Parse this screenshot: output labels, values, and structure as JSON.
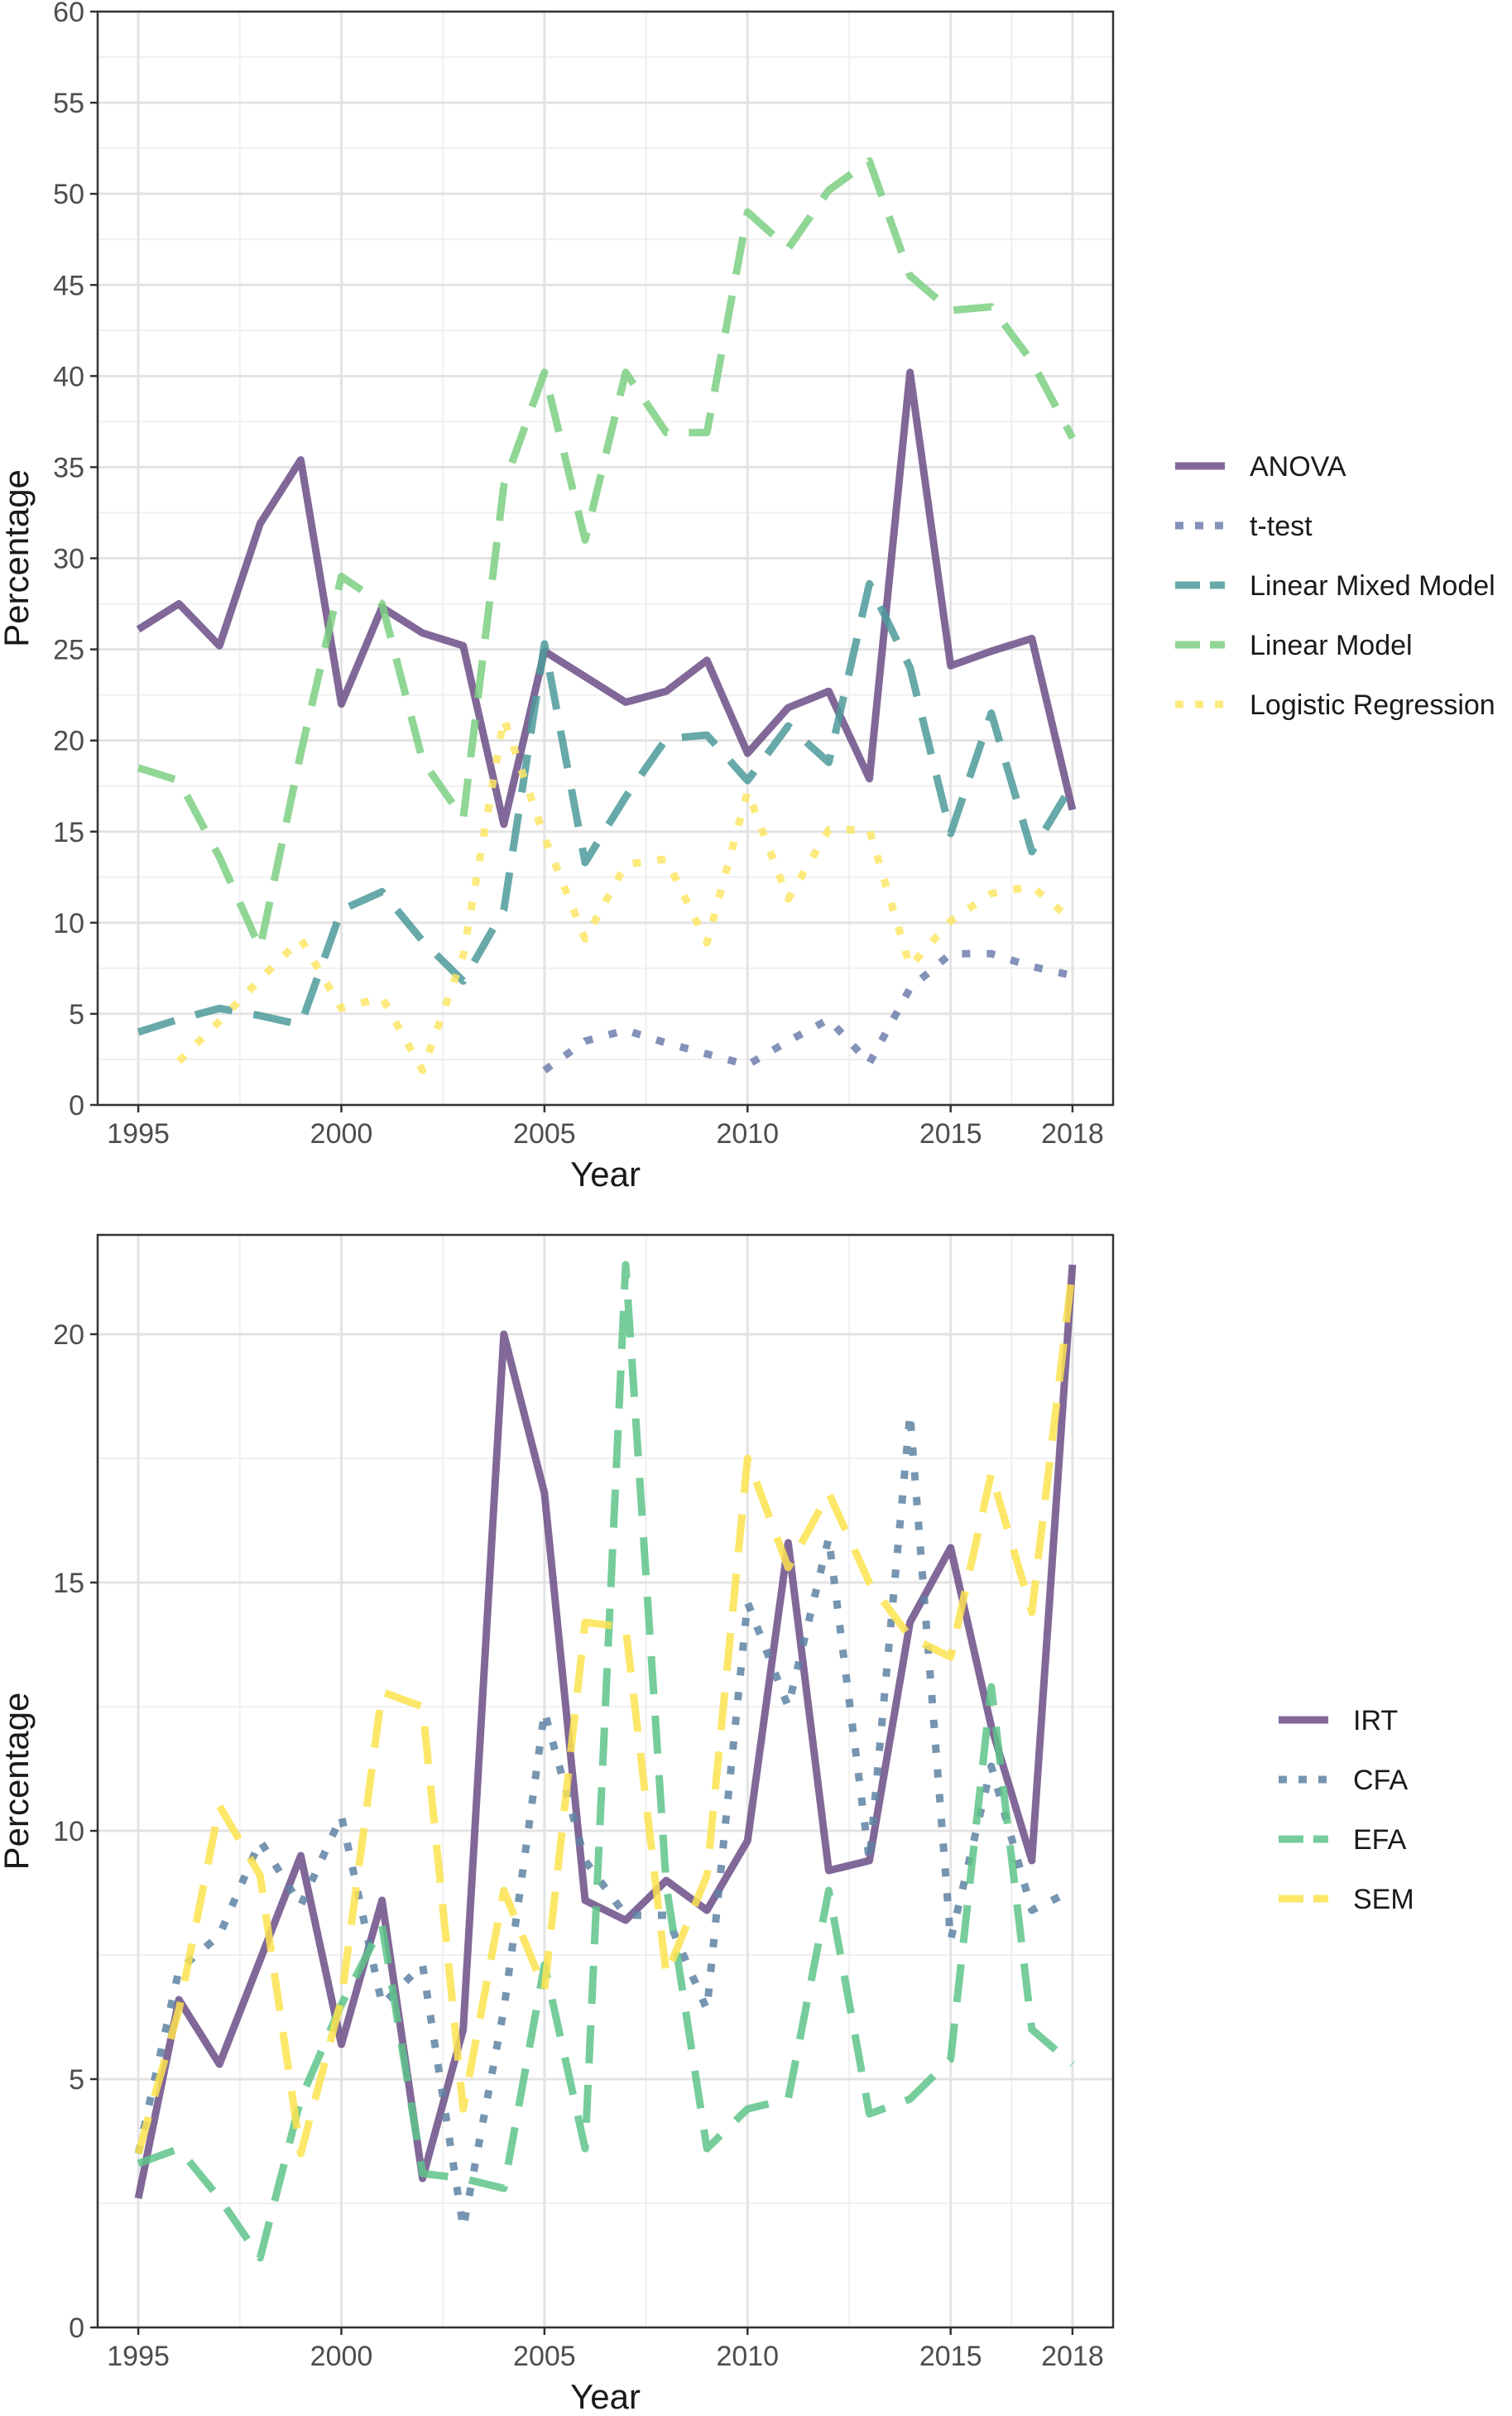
{
  "chart_data": [
    {
      "type": "line",
      "title": "",
      "xlabel": "Year",
      "ylabel": "Percentage",
      "xlim": [
        1994,
        2019
      ],
      "ylim": [
        0,
        60
      ],
      "x_ticks": [
        1995,
        2000,
        2005,
        2010,
        2015,
        2018
      ],
      "x_tick_labels": [
        "1995",
        "2000",
        "2005",
        "2010",
        "2015",
        "2018"
      ],
      "y_ticks": [
        0,
        5,
        10,
        15,
        20,
        25,
        30,
        35,
        40,
        45,
        50,
        55,
        60
      ],
      "y_tick_labels": [
        "0",
        "5",
        "10",
        "15",
        "20",
        "25",
        "30",
        "35",
        "40",
        "45",
        "50",
        "55",
        "60"
      ],
      "grid": true,
      "legend_position": "right",
      "series": [
        {
          "name": "ANOVA",
          "color": "#6b4e86",
          "style": "solid",
          "x": [
            1995,
            1996,
            1997,
            1998,
            1999,
            2000,
            2001,
            2002,
            2003,
            2004,
            2005,
            2006,
            2007,
            2008,
            2009,
            2010,
            2011,
            2012,
            2013,
            2014,
            2015,
            2016,
            2017,
            2018
          ],
          "y": [
            26.1,
            27.5,
            25.2,
            31.9,
            35.4,
            22.0,
            27.3,
            25.9,
            25.2,
            15.4,
            24.9,
            23.5,
            22.1,
            22.7,
            24.4,
            19.3,
            21.8,
            22.7,
            17.9,
            40.2,
            24.1,
            24.9,
            25.6,
            16.2
          ]
        },
        {
          "name": "t-test",
          "color": "#6f7fae",
          "style": "dotted",
          "x": [
            2005,
            2006,
            2007,
            2008,
            2009,
            2010,
            2011,
            2012,
            2013,
            2014,
            2015,
            2016,
            2017,
            2018
          ],
          "y": [
            1.9,
            3.5,
            4.1,
            3.4,
            2.8,
            2.2,
            3.5,
            4.7,
            2.3,
            6.4,
            8.3,
            8.3,
            7.6,
            7.1
          ]
        },
        {
          "name": "Linear Mixed Model",
          "color": "#4e9a9a",
          "style": "dashed",
          "x": [
            1995,
            1996,
            1997,
            1998,
            1999,
            2000,
            2001,
            2002,
            2003,
            2004,
            2005,
            2006,
            2007,
            2008,
            2009,
            2010,
            2011,
            2012,
            2013,
            2014,
            2015,
            2016,
            2017,
            2018
          ],
          "y": [
            4.0,
            4.7,
            5.3,
            4.9,
            4.4,
            10.7,
            11.7,
            9.0,
            6.8,
            10.7,
            25.3,
            13.3,
            16.9,
            20.1,
            20.3,
            17.8,
            20.8,
            18.8,
            28.6,
            24.0,
            14.9,
            21.5,
            13.9,
            17.6
          ]
        },
        {
          "name": "Linear Model",
          "color": "#7ccf82",
          "style": "dashed",
          "x": [
            1995,
            1996,
            1997,
            1998,
            1999,
            2000,
            2001,
            2002,
            2003,
            2004,
            2005,
            2006,
            2007,
            2008,
            2009,
            2010,
            2011,
            2012,
            2013,
            2014,
            2015,
            2016,
            2017,
            2018
          ],
          "y": [
            18.5,
            17.8,
            13.6,
            8.6,
            19.3,
            29.0,
            27.5,
            18.9,
            15.7,
            34.0,
            40.2,
            31.0,
            40.2,
            36.9,
            36.9,
            49.0,
            47.0,
            50.2,
            51.8,
            45.5,
            43.6,
            43.8,
            40.8,
            36.6
          ]
        },
        {
          "name": "Logistic Regression",
          "color": "#fde667",
          "style": "dotted",
          "x": [
            1996,
            1997,
            1998,
            1999,
            2000,
            2001,
            2002,
            2003,
            2004,
            2005,
            2006,
            2007,
            2008,
            2009,
            2010,
            2011,
            2012,
            2013,
            2014,
            2015,
            2016,
            2017,
            2018
          ],
          "y": [
            2.4,
            4.6,
            6.9,
            9.1,
            5.3,
            5.9,
            1.9,
            8.2,
            21.2,
            14.7,
            9.1,
            13.2,
            13.5,
            8.9,
            17.2,
            11.3,
            15.1,
            15.1,
            7.6,
            10.1,
            11.6,
            12.0,
            10.1
          ]
        }
      ]
    },
    {
      "type": "line",
      "title": "",
      "xlabel": "Year",
      "ylabel": "Percentage",
      "xlim": [
        1994,
        2019
      ],
      "ylim": [
        0,
        22
      ],
      "x_ticks": [
        1995,
        2000,
        2005,
        2010,
        2015,
        2018
      ],
      "x_tick_labels": [
        "1995",
        "2000",
        "2005",
        "2010",
        "2015",
        "2018"
      ],
      "y_ticks": [
        0,
        5,
        10,
        15,
        20
      ],
      "y_tick_labels": [
        "0",
        "5",
        "10",
        "15",
        "20"
      ],
      "grid": true,
      "legend_position": "right",
      "series": [
        {
          "name": "IRT",
          "color": "#6b4e86",
          "style": "solid",
          "x": [
            1995,
            1996,
            1997,
            1998,
            1999,
            2000,
            2001,
            2002,
            2003,
            2004,
            2005,
            2006,
            2007,
            2008,
            2009,
            2010,
            2011,
            2012,
            2013,
            2014,
            2015,
            2016,
            2017,
            2018
          ],
          "y": [
            2.6,
            6.6,
            5.3,
            7.4,
            9.5,
            5.7,
            8.6,
            3.0,
            6.0,
            20.0,
            16.8,
            8.6,
            8.2,
            9.0,
            8.4,
            9.8,
            15.8,
            9.2,
            9.4,
            14.2,
            15.7,
            12.1,
            9.4,
            21.4
          ]
        },
        {
          "name": "CFA",
          "color": "#5e82a3",
          "style": "dotted",
          "x": [
            1995,
            1996,
            1997,
            1998,
            1999,
            2000,
            2001,
            2002,
            2003,
            2004,
            2005,
            2006,
            2007,
            2008,
            2009,
            2010,
            2011,
            2012,
            2013,
            2014,
            2015,
            2016,
            2017,
            2018
          ],
          "y": [
            3.5,
            7.2,
            7.9,
            9.8,
            8.5,
            10.3,
            6.5,
            7.3,
            2.0,
            6.4,
            12.4,
            9.4,
            8.3,
            8.3,
            6.4,
            14.6,
            12.5,
            15.9,
            9.4,
            18.4,
            7.8,
            11.3,
            8.4,
            8.8
          ]
        },
        {
          "name": "EFA",
          "color": "#5ec489",
          "style": "dashed",
          "x": [
            1995,
            1996,
            1997,
            1998,
            1999,
            2000,
            2001,
            2002,
            2003,
            2004,
            2005,
            2006,
            2007,
            2008,
            2009,
            2010,
            2011,
            2012,
            2013,
            2014,
            2015,
            2016,
            2017,
            2018
          ],
          "y": [
            3.3,
            3.6,
            2.6,
            1.4,
            4.6,
            6.5,
            8.1,
            3.1,
            3.0,
            2.8,
            7.3,
            3.6,
            21.4,
            8.9,
            3.6,
            4.4,
            4.6,
            8.8,
            4.3,
            4.6,
            5.4,
            12.9,
            6.0,
            5.3
          ]
        },
        {
          "name": "SEM",
          "color": "#fde34f",
          "style": "dashed",
          "x": [
            1995,
            1996,
            1997,
            1998,
            1999,
            2000,
            2001,
            2002,
            2003,
            2004,
            2005,
            2006,
            2007,
            2008,
            2009,
            2010,
            2011,
            2012,
            2013,
            2014,
            2015,
            2016,
            2017,
            2018
          ],
          "y": [
            3.5,
            6.4,
            10.5,
            9.1,
            3.5,
            6.6,
            12.8,
            12.5,
            4.4,
            8.8,
            6.8,
            14.2,
            14.1,
            7.1,
            9.1,
            17.5,
            15.3,
            16.8,
            15.0,
            13.9,
            13.5,
            17.2,
            14.4,
            21.3
          ]
        }
      ]
    }
  ]
}
